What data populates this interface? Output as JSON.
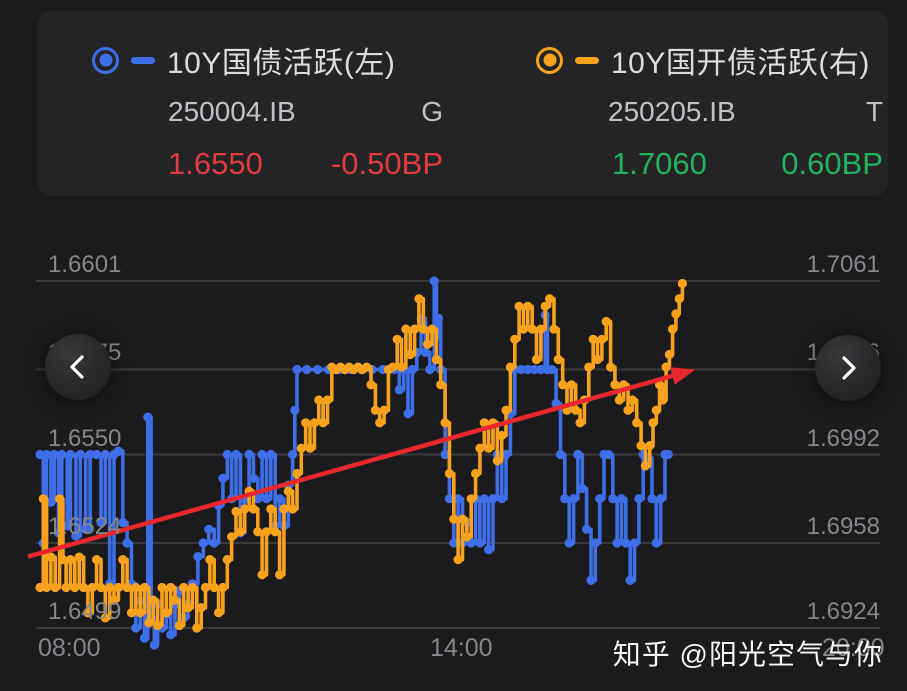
{
  "header": {
    "left_series": {
      "legend": "10Y国债活跃(左)",
      "code": "250004.IB",
      "tag": "G",
      "price": "1.6550",
      "change": "-0.50BP"
    },
    "right_series": {
      "legend": "10Y国开债活跃(右)",
      "code": "250205.IB",
      "tag": "T",
      "price": "1.7060",
      "change": "0.60BP"
    }
  },
  "nav": {
    "prev_icon": "chevron-left",
    "next_icon": "chevron-right"
  },
  "watermark": "知乎 @阳光空气与你",
  "colors": {
    "background": "#1b1b1d",
    "card": "#242426",
    "blue_series": "#3e6ee8",
    "orange_series": "#f6a21c",
    "down_red": "#e23b41",
    "up_green": "#21b35f",
    "axis_text": "#87878b",
    "gridline": "#3a3a3c",
    "trend_arrow": "#e8282e"
  },
  "chart_data": {
    "type": "line",
    "subtype": "step-with-markers",
    "grid": true,
    "x_axis": {
      "labels": [
        "08:00",
        "14:00",
        "20:00"
      ],
      "label_minutes": [
        0,
        360,
        720
      ]
    },
    "left_axis": {
      "ticks": [
        "1.6601",
        "1.6575",
        "1.6550",
        "1.6524",
        "1.6499"
      ],
      "tick_values": [
        1.6601,
        1.6575,
        1.655,
        1.6524,
        1.6499
      ],
      "range": [
        1.6499,
        1.6601
      ]
    },
    "right_axis": {
      "ticks": [
        "1.7061",
        "1.7026",
        "1.6992",
        "1.6958",
        "1.6924"
      ],
      "tick_values": [
        1.7061,
        1.7026,
        1.6992,
        1.6958,
        1.6924
      ],
      "range": [
        1.6924,
        1.7061
      ]
    },
    "series": [
      {
        "name": "10Y国债活跃(左)",
        "axis": "left",
        "color": "#3e6ee8",
        "points": [
          [
            0,
            1.655
          ],
          [
            3,
            1.6524
          ],
          [
            6,
            1.655
          ],
          [
            10,
            1.6536
          ],
          [
            13,
            1.655
          ],
          [
            17,
            1.6527
          ],
          [
            20,
            1.655
          ],
          [
            25,
            1.6529
          ],
          [
            28,
            1.655
          ],
          [
            33,
            1.6526
          ],
          [
            37,
            1.655
          ],
          [
            42,
            1.6528
          ],
          [
            46,
            1.655
          ],
          [
            52,
            1.655
          ],
          [
            56,
            1.653
          ],
          [
            60,
            1.655
          ],
          [
            64,
            1.6512
          ],
          [
            68,
            1.655
          ],
          [
            72,
            1.6551
          ],
          [
            76,
            1.653
          ],
          [
            80,
            1.6524
          ],
          [
            84,
            1.6512
          ],
          [
            88,
            1.6499
          ],
          [
            92,
            1.6507
          ],
          [
            96,
            1.6496
          ],
          [
            99,
            1.6561
          ],
          [
            102,
            1.6502
          ],
          [
            105,
            1.6494
          ],
          [
            108,
            1.6506
          ],
          [
            112,
            1.6499
          ],
          [
            116,
            1.6503
          ],
          [
            120,
            1.6497
          ],
          [
            124,
            1.6506
          ],
          [
            128,
            1.651
          ],
          [
            132,
            1.6502
          ],
          [
            136,
            1.6506
          ],
          [
            140,
            1.6512
          ],
          [
            145,
            1.652
          ],
          [
            150,
            1.6524
          ],
          [
            155,
            1.6528
          ],
          [
            160,
            1.6524
          ],
          [
            164,
            1.6535
          ],
          [
            168,
            1.6543
          ],
          [
            172,
            1.655
          ],
          [
            176,
            1.6537
          ],
          [
            180,
            1.655
          ],
          [
            184,
            1.6527
          ],
          [
            188,
            1.6537
          ],
          [
            192,
            1.655
          ],
          [
            196,
            1.6543
          ],
          [
            200,
            1.6537
          ],
          [
            204,
            1.655
          ],
          [
            208,
            1.6537
          ],
          [
            212,
            1.655
          ],
          [
            216,
            1.6529
          ],
          [
            220,
            1.6537
          ],
          [
            224,
            1.6529
          ],
          [
            228,
            1.6541
          ],
          [
            232,
            1.655
          ],
          [
            234,
            1.6563
          ],
          [
            236,
            1.6575
          ],
          [
            245,
            1.6575
          ],
          [
            255,
            1.6575
          ],
          [
            265,
            1.6575
          ],
          [
            275,
            1.6575
          ],
          [
            285,
            1.6575
          ],
          [
            295,
            1.6575
          ],
          [
            305,
            1.6575
          ],
          [
            315,
            1.6575
          ],
          [
            325,
            1.6575
          ],
          [
            330,
            1.6569
          ],
          [
            334,
            1.6575
          ],
          [
            338,
            1.6562
          ],
          [
            342,
            1.6575
          ],
          [
            346,
            1.658
          ],
          [
            350,
            1.659
          ],
          [
            354,
            1.658
          ],
          [
            358,
            1.6575
          ],
          [
            362,
            1.6601
          ],
          [
            364,
            1.6585
          ],
          [
            366,
            1.659
          ],
          [
            368,
            1.6575
          ],
          [
            372,
            1.655
          ],
          [
            376,
            1.6537
          ],
          [
            380,
            1.6524
          ],
          [
            384,
            1.6537
          ],
          [
            388,
            1.6524
          ],
          [
            392,
            1.653
          ],
          [
            396,
            1.6524
          ],
          [
            400,
            1.6537
          ],
          [
            404,
            1.6524
          ],
          [
            408,
            1.6537
          ],
          [
            412,
            1.6522
          ],
          [
            416,
            1.6537
          ],
          [
            420,
            1.655
          ],
          [
            424,
            1.6537
          ],
          [
            428,
            1.655
          ],
          [
            432,
            1.6562
          ],
          [
            436,
            1.6575
          ],
          [
            442,
            1.6575
          ],
          [
            448,
            1.6575
          ],
          [
            454,
            1.6575
          ],
          [
            460,
            1.6575
          ],
          [
            464,
            1.6591
          ],
          [
            466,
            1.6575
          ],
          [
            470,
            1.6575
          ],
          [
            474,
            1.6565
          ],
          [
            478,
            1.655
          ],
          [
            482,
            1.6537
          ],
          [
            486,
            1.6524
          ],
          [
            490,
            1.6537
          ],
          [
            494,
            1.655
          ],
          [
            498,
            1.654
          ],
          [
            502,
            1.6528
          ],
          [
            506,
            1.6513
          ],
          [
            510,
            1.6524
          ],
          [
            514,
            1.6537
          ],
          [
            518,
            1.655
          ],
          [
            522,
            1.655
          ],
          [
            526,
            1.6537
          ],
          [
            530,
            1.6524
          ],
          [
            534,
            1.6537
          ],
          [
            538,
            1.6524
          ],
          [
            542,
            1.6513
          ],
          [
            546,
            1.6524
          ],
          [
            550,
            1.6537
          ],
          [
            554,
            1.655
          ],
          [
            558,
            1.6549
          ],
          [
            562,
            1.6537
          ],
          [
            566,
            1.6524
          ],
          [
            570,
            1.6537
          ],
          [
            574,
            1.655
          ],
          [
            577,
            1.655
          ]
        ]
      },
      {
        "name": "10Y国开债活跃(右)",
        "axis": "right",
        "color": "#f6a21c",
        "points": [
          [
            0,
            1.694
          ],
          [
            3,
            1.6975
          ],
          [
            6,
            1.694
          ],
          [
            10,
            1.6952
          ],
          [
            14,
            1.694
          ],
          [
            18,
            1.6975
          ],
          [
            21,
            1.6951
          ],
          [
            24,
            1.694
          ],
          [
            28,
            1.6951
          ],
          [
            32,
            1.694
          ],
          [
            36,
            1.6952
          ],
          [
            40,
            1.694
          ],
          [
            44,
            1.693
          ],
          [
            48,
            1.694
          ],
          [
            52,
            1.6951
          ],
          [
            56,
            1.694
          ],
          [
            60,
            1.6928
          ],
          [
            64,
            1.694
          ],
          [
            68,
            1.6935
          ],
          [
            72,
            1.694
          ],
          [
            76,
            1.6951
          ],
          [
            80,
            1.694
          ],
          [
            84,
            1.693
          ],
          [
            88,
            1.694
          ],
          [
            92,
            1.693
          ],
          [
            96,
            1.694
          ],
          [
            100,
            1.6926
          ],
          [
            104,
            1.6935
          ],
          [
            108,
            1.6925
          ],
          [
            112,
            1.694
          ],
          [
            116,
            1.693
          ],
          [
            120,
            1.694
          ],
          [
            124,
            1.6935
          ],
          [
            128,
            1.6925
          ],
          [
            132,
            1.694
          ],
          [
            136,
            1.6932
          ],
          [
            140,
            1.694
          ],
          [
            144,
            1.6924
          ],
          [
            148,
            1.6932
          ],
          [
            152,
            1.694
          ],
          [
            156,
            1.6951
          ],
          [
            160,
            1.694
          ],
          [
            164,
            1.693
          ],
          [
            168,
            1.694
          ],
          [
            172,
            1.6951
          ],
          [
            176,
            1.696
          ],
          [
            180,
            1.697
          ],
          [
            184,
            1.6962
          ],
          [
            188,
            1.6971
          ],
          [
            192,
            1.6978
          ],
          [
            196,
            1.6971
          ],
          [
            200,
            1.6962
          ],
          [
            204,
            1.6945
          ],
          [
            208,
            1.6962
          ],
          [
            212,
            1.6971
          ],
          [
            216,
            1.6962
          ],
          [
            220,
            1.6945
          ],
          [
            224,
            1.6971
          ],
          [
            228,
            1.6978
          ],
          [
            232,
            1.6971
          ],
          [
            236,
            1.6985
          ],
          [
            240,
            1.6995
          ],
          [
            244,
            1.7005
          ],
          [
            248,
            1.6995
          ],
          [
            252,
            1.7005
          ],
          [
            256,
            1.7014
          ],
          [
            260,
            1.7005
          ],
          [
            264,
            1.7014
          ],
          [
            268,
            1.7027
          ],
          [
            272,
            1.7026
          ],
          [
            276,
            1.7027
          ],
          [
            280,
            1.7026
          ],
          [
            284,
            1.7027
          ],
          [
            288,
            1.7026
          ],
          [
            292,
            1.7027
          ],
          [
            296,
            1.7026
          ],
          [
            300,
            1.7027
          ],
          [
            304,
            1.702
          ],
          [
            308,
            1.701
          ],
          [
            312,
            1.7005
          ],
          [
            316,
            1.701
          ],
          [
            320,
            1.7026
          ],
          [
            324,
            1.7027
          ],
          [
            328,
            1.7038
          ],
          [
            332,
            1.7027
          ],
          [
            336,
            1.7042
          ],
          [
            340,
            1.7032
          ],
          [
            344,
            1.7042
          ],
          [
            348,
            1.7054
          ],
          [
            352,
            1.7042
          ],
          [
            356,
            1.7036
          ],
          [
            360,
            1.7042
          ],
          [
            364,
            1.703
          ],
          [
            368,
            1.702
          ],
          [
            372,
            1.7005
          ],
          [
            376,
            1.6985
          ],
          [
            380,
            1.6967
          ],
          [
            384,
            1.6951
          ],
          [
            388,
            1.6967
          ],
          [
            392,
            1.696
          ],
          [
            396,
            1.6975
          ],
          [
            400,
            1.6985
          ],
          [
            404,
            1.6995
          ],
          [
            408,
            1.7005
          ],
          [
            412,
            1.6995
          ],
          [
            416,
            1.7005
          ],
          [
            420,
            1.699
          ],
          [
            424,
            1.7
          ],
          [
            428,
            1.701
          ],
          [
            432,
            1.7027
          ],
          [
            436,
            1.7038
          ],
          [
            440,
            1.7051
          ],
          [
            444,
            1.7042
          ],
          [
            448,
            1.7051
          ],
          [
            452,
            1.7042
          ],
          [
            456,
            1.703
          ],
          [
            460,
            1.7042
          ],
          [
            464,
            1.7051
          ],
          [
            468,
            1.7054
          ],
          [
            472,
            1.7042
          ],
          [
            476,
            1.703
          ],
          [
            480,
            1.702
          ],
          [
            484,
            1.701
          ],
          [
            488,
            1.702
          ],
          [
            492,
            1.701
          ],
          [
            496,
            1.7005
          ],
          [
            500,
            1.7014
          ],
          [
            504,
            1.7027
          ],
          [
            508,
            1.7038
          ],
          [
            512,
            1.703
          ],
          [
            516,
            1.7038
          ],
          [
            520,
            1.7045
          ],
          [
            524,
            1.7027
          ],
          [
            528,
            1.702
          ],
          [
            532,
            1.7014
          ],
          [
            536,
            1.702
          ],
          [
            540,
            1.701
          ],
          [
            544,
            1.7014
          ],
          [
            548,
            1.7005
          ],
          [
            552,
            1.6996
          ],
          [
            556,
            1.6988
          ],
          [
            560,
            1.6996
          ],
          [
            563,
            1.7005
          ],
          [
            566,
            1.701
          ],
          [
            569,
            1.702
          ],
          [
            572,
            1.7014
          ],
          [
            575,
            1.7027
          ],
          [
            578,
            1.7032
          ],
          [
            581,
            1.7042
          ],
          [
            584,
            1.7048
          ],
          [
            587,
            1.7054
          ],
          [
            590,
            1.706
          ]
        ]
      }
    ],
    "annotation_arrow": {
      "axis": "left",
      "color": "#e8282e",
      "start": [
        -11,
        1.652
      ],
      "end": [
        602,
        1.6575
      ]
    }
  }
}
